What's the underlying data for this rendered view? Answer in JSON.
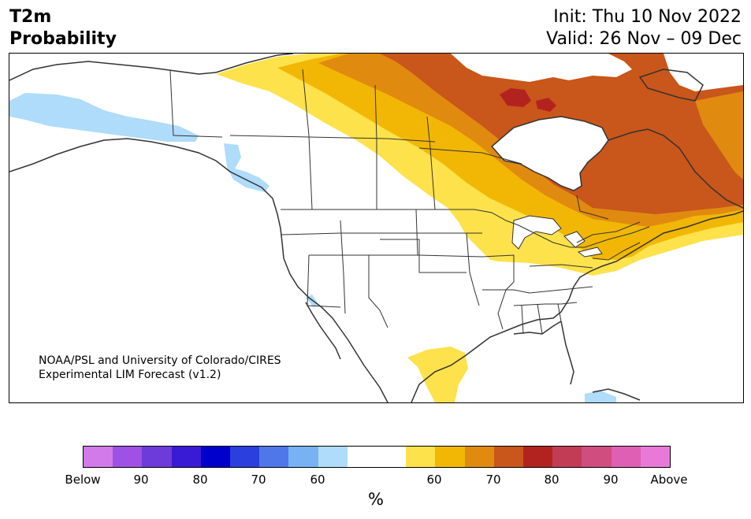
{
  "title": {
    "left_line1": "T2m",
    "left_line2": "Probability",
    "init": "Init: Thu 10 Nov 2022",
    "valid": "Valid: 26 Nov – 09 Dec"
  },
  "credit": {
    "line1": "NOAA/PSL and University of Colorado/CIRES",
    "line2": "Experimental LIM Forecast (v1.2)"
  },
  "colorbar": {
    "colors": [
      "#d27ae9",
      "#9d52e3",
      "#6c3bd9",
      "#3a1bd5",
      "#0000cc",
      "#2a3fdc",
      "#4f77e9",
      "#78b2f3",
      "#aedcfa",
      "#ffffff",
      "#ffffff",
      "#fde24b",
      "#f2b705",
      "#e08b10",
      "#c9561a",
      "#b2231f",
      "#c23c55",
      "#d04d7f",
      "#de5fb3",
      "#e879d8"
    ],
    "ticks": [
      "Below",
      "90",
      "80",
      "70",
      "60",
      "60",
      "70",
      "80",
      "90",
      "Above"
    ],
    "unit": "%"
  },
  "map": {
    "land_color": "#ffffff",
    "border_color": "#333333",
    "categories": {
      "below_60": "#aedcfa",
      "above_60": "#fde24b",
      "above_65": "#f2b705",
      "above_70": "#e08b10",
      "above_75": "#c9561a",
      "above_80": "#b2231f"
    }
  }
}
